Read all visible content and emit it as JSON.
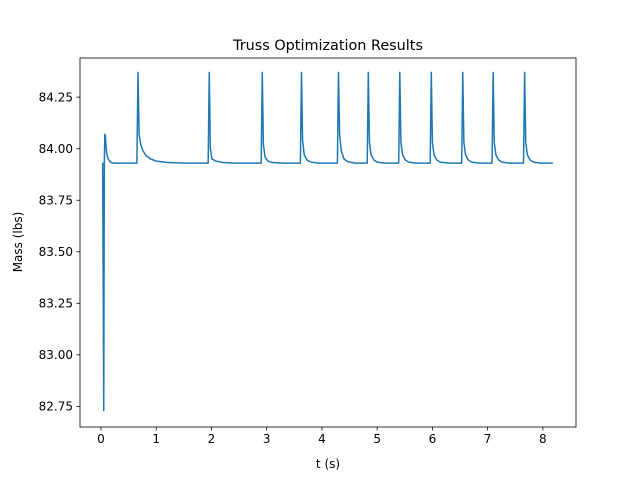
{
  "chart_data": {
    "type": "line",
    "title": "Truss Optimization Results",
    "xlabel": "t (s)",
    "ylabel": "Mass (lbs)",
    "xlim": [
      -0.38,
      8.6
    ],
    "ylim": [
      82.65,
      84.44
    ],
    "grid": false,
    "legend": "none",
    "colors": {
      "line": "#1f77b4",
      "axes": "#000000",
      "background": "#ffffff"
    },
    "xticks": [
      {
        "value": 0,
        "label": "0"
      },
      {
        "value": 1,
        "label": "1"
      },
      {
        "value": 2,
        "label": "2"
      },
      {
        "value": 3,
        "label": "3"
      },
      {
        "value": 4,
        "label": "4"
      },
      {
        "value": 5,
        "label": "5"
      },
      {
        "value": 6,
        "label": "6"
      },
      {
        "value": 7,
        "label": "7"
      },
      {
        "value": 8,
        "label": "8"
      }
    ],
    "yticks": [
      {
        "value": 82.75,
        "label": "82.75"
      },
      {
        "value": 83.0,
        "label": "83.00"
      },
      {
        "value": 83.25,
        "label": "83.25"
      },
      {
        "value": 83.5,
        "label": "83.50"
      },
      {
        "value": 83.75,
        "label": "83.75"
      },
      {
        "value": 84.0,
        "label": "84.00"
      },
      {
        "value": 84.25,
        "label": "84.25"
      }
    ],
    "series": [
      {
        "x": [
          0.02,
          0.03,
          0.05,
          0.06,
          0.07,
          0.08,
          0.1,
          0.13,
          0.17,
          0.22,
          0.3,
          0.65,
          0.67,
          0.69,
          0.72,
          0.76,
          0.82,
          0.9,
          1.0,
          1.2,
          1.5,
          1.94,
          1.96,
          1.98,
          2.01,
          2.08,
          2.2,
          2.4,
          2.9,
          2.92,
          2.94,
          2.97,
          3.02,
          3.1,
          3.3,
          3.61,
          3.63,
          3.65,
          3.68,
          3.73,
          3.8,
          3.95,
          4.28,
          4.3,
          4.32,
          4.35,
          4.4,
          4.47,
          4.6,
          4.82,
          4.84,
          4.86,
          4.89,
          4.94,
          5.0,
          5.15,
          5.39,
          5.41,
          5.43,
          5.46,
          5.51,
          5.57,
          5.7,
          5.96,
          5.98,
          6.0,
          6.03,
          6.08,
          6.14,
          6.3,
          6.53,
          6.55,
          6.57,
          6.6,
          6.65,
          6.71,
          6.85,
          7.08,
          7.1,
          7.12,
          7.15,
          7.2,
          7.26,
          7.4,
          7.65,
          7.67,
          7.69,
          7.72,
          7.77,
          7.83,
          7.95,
          8.18
        ],
        "y": [
          83.93,
          83.93,
          82.73,
          83.93,
          84.07,
          84.06,
          83.98,
          83.95,
          83.935,
          83.93,
          83.93,
          83.93,
          84.37,
          84.07,
          84.02,
          83.99,
          83.965,
          83.95,
          83.94,
          83.933,
          83.93,
          83.93,
          84.37,
          84.0,
          83.95,
          83.94,
          83.933,
          83.93,
          83.93,
          84.37,
          84.02,
          83.96,
          83.94,
          83.933,
          83.93,
          83.93,
          84.37,
          84.04,
          83.97,
          83.945,
          83.935,
          83.93,
          83.93,
          84.37,
          84.07,
          83.99,
          83.95,
          83.937,
          83.93,
          83.93,
          84.37,
          84.03,
          83.97,
          83.945,
          83.935,
          83.93,
          83.93,
          84.37,
          84.03,
          83.97,
          83.945,
          83.935,
          83.93,
          83.93,
          84.37,
          84.03,
          83.97,
          83.945,
          83.935,
          83.93,
          83.93,
          84.37,
          84.03,
          83.97,
          83.945,
          83.935,
          83.93,
          83.93,
          84.37,
          84.03,
          83.97,
          83.945,
          83.935,
          83.93,
          83.93,
          84.37,
          84.03,
          83.97,
          83.945,
          83.935,
          83.93,
          83.93
        ]
      }
    ]
  }
}
